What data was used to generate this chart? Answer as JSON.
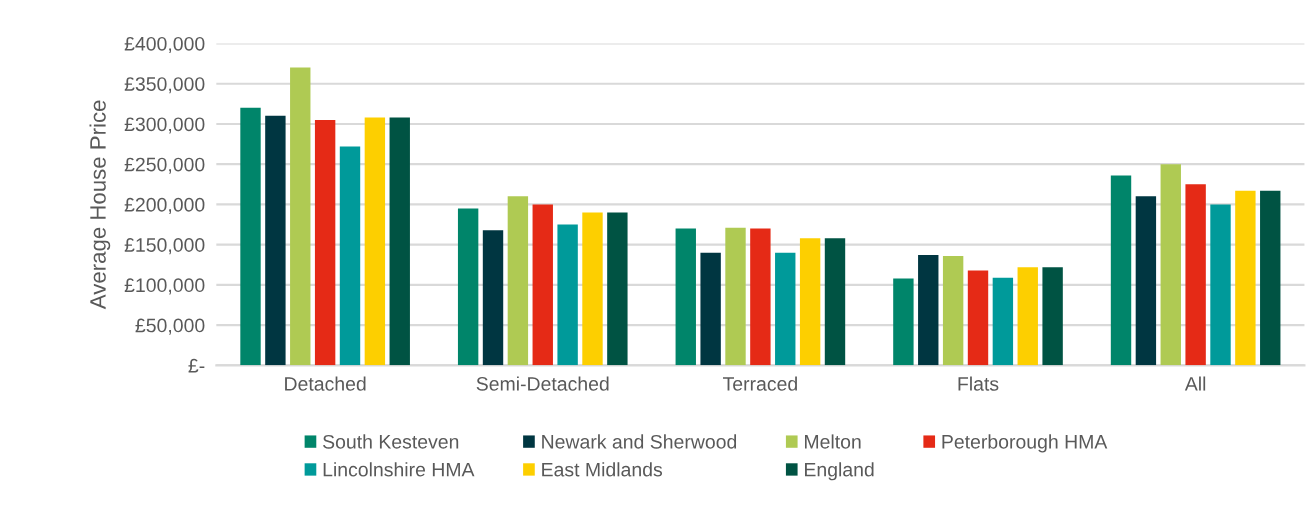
{
  "chart_data": {
    "type": "bar",
    "ylabel": "Average House Price",
    "categories": [
      "Detached",
      "Semi-Detached",
      "Terraced",
      "Flats",
      "All"
    ],
    "series": [
      {
        "name": "South Kesteven",
        "color": "#00856a",
        "values": [
          320000,
          195000,
          170000,
          108000,
          236000
        ]
      },
      {
        "name": "Newark and Sherwood",
        "color": "#003641",
        "values": [
          310000,
          168000,
          140000,
          137000,
          210000
        ]
      },
      {
        "name": "Melton",
        "color": "#afca53",
        "values": [
          370000,
          210000,
          171000,
          136000,
          250000
        ]
      },
      {
        "name": "Peterborough HMA",
        "color": "#e52a16",
        "values": [
          305000,
          200000,
          170000,
          118000,
          225000
        ]
      },
      {
        "name": "Lincolnshire HMA",
        "color": "#009a9a",
        "values": [
          272000,
          175000,
          140000,
          109000,
          200000
        ]
      },
      {
        "name": "East Midlands",
        "color": "#fdcf00",
        "values": [
          308000,
          190000,
          158000,
          122000,
          217000
        ]
      },
      {
        "name": "England",
        "color": "#005343",
        "values": [
          308000,
          190000,
          158000,
          122000,
          217000
        ]
      }
    ],
    "ylim": [
      0,
      400000
    ],
    "yticks": [
      {
        "value": 0,
        "label": "£-"
      },
      {
        "value": 50000,
        "label": "£50,000"
      },
      {
        "value": 100000,
        "label": "£100,000"
      },
      {
        "value": 150000,
        "label": "£150,000"
      },
      {
        "value": 200000,
        "label": "£200,000"
      },
      {
        "value": 250000,
        "label": "£250,000"
      },
      {
        "value": 300000,
        "label": "£300,000"
      },
      {
        "value": 350000,
        "label": "£350,000"
      },
      {
        "value": 400000,
        "label": "£400,000"
      }
    ],
    "grid": "y",
    "legend": "bottom"
  }
}
